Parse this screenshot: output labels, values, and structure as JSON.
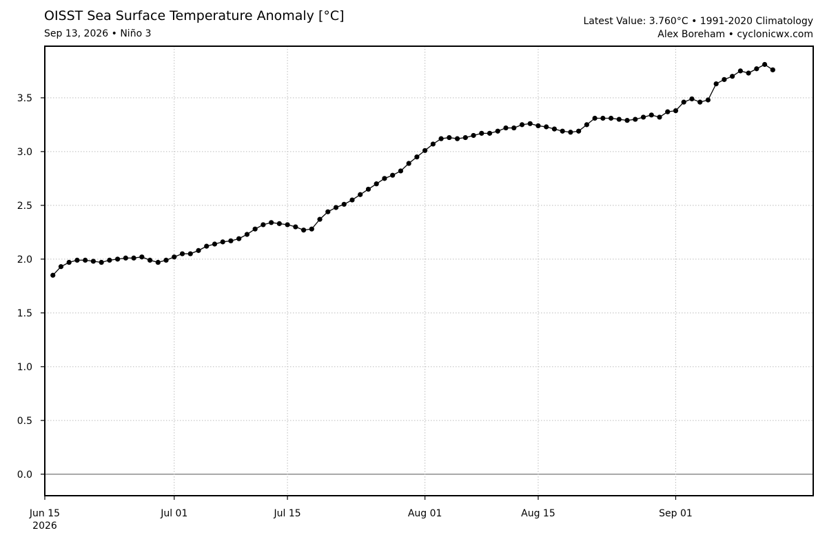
{
  "header": {
    "title": "OISST Sea Surface Temperature Anomaly [°C]",
    "subtitle": "Sep 13, 2026 • Niño 3",
    "latest_value": "Latest Value: 3.760°C • 1991-2020 Climatology",
    "credit": "Alex Boreham • cyclonicwx.com"
  },
  "chart_data": {
    "type": "line",
    "title": "OISST Sea Surface Temperature Anomaly [°C]",
    "subtitle": "Sep 13, 2026 • Niño 3",
    "xlabel": "",
    "ylabel": "",
    "ylim": [
      -0.2,
      3.98
    ],
    "xlim": [
      "2026-06-15",
      "2026-09-18"
    ],
    "yticks": [
      0.0,
      0.5,
      1.0,
      1.5,
      2.0,
      2.5,
      3.0,
      3.5
    ],
    "ytick_labels": [
      "0.0",
      "0.5",
      "1.0",
      "1.5",
      "2.0",
      "2.5",
      "3.0",
      "3.5"
    ],
    "xticks": [
      {
        "date": "2026-06-15",
        "label": "Jun 15",
        "sublabel": "2026"
      },
      {
        "date": "2026-07-01",
        "label": "Jul 01",
        "sublabel": ""
      },
      {
        "date": "2026-07-15",
        "label": "Jul 15",
        "sublabel": ""
      },
      {
        "date": "2026-08-01",
        "label": "Aug 01",
        "sublabel": ""
      },
      {
        "date": "2026-08-15",
        "label": "Aug 15",
        "sublabel": ""
      },
      {
        "date": "2026-09-01",
        "label": "Sep 01",
        "sublabel": ""
      }
    ],
    "grid": true,
    "zero_line": true,
    "line_color": "#000000",
    "marker_color": "#000000",
    "zero_line_color": "#808080",
    "grid_color": "#bbbbbb",
    "series": [
      {
        "x": [
          "2026-06-16",
          "2026-06-17",
          "2026-06-18",
          "2026-06-19",
          "2026-06-20",
          "2026-06-21",
          "2026-06-22",
          "2026-06-23",
          "2026-06-24",
          "2026-06-25",
          "2026-06-26",
          "2026-06-27",
          "2026-06-28",
          "2026-06-29",
          "2026-06-30",
          "2026-07-01",
          "2026-07-02",
          "2026-07-03",
          "2026-07-04",
          "2026-07-05",
          "2026-07-06",
          "2026-07-07",
          "2026-07-08",
          "2026-07-09",
          "2026-07-10",
          "2026-07-11",
          "2026-07-12",
          "2026-07-13",
          "2026-07-14",
          "2026-07-15",
          "2026-07-16",
          "2026-07-17",
          "2026-07-18",
          "2026-07-19",
          "2026-07-20",
          "2026-07-21",
          "2026-07-22",
          "2026-07-23",
          "2026-07-24",
          "2026-07-25",
          "2026-07-26",
          "2026-07-27",
          "2026-07-28",
          "2026-07-29",
          "2026-07-30",
          "2026-07-31",
          "2026-08-01",
          "2026-08-02",
          "2026-08-03",
          "2026-08-04",
          "2026-08-05",
          "2026-08-06",
          "2026-08-07",
          "2026-08-08",
          "2026-08-09",
          "2026-08-10",
          "2026-08-11",
          "2026-08-12",
          "2026-08-13",
          "2026-08-14",
          "2026-08-15",
          "2026-08-16",
          "2026-08-17",
          "2026-08-18",
          "2026-08-19",
          "2026-08-20",
          "2026-08-21",
          "2026-08-22",
          "2026-08-23",
          "2026-08-24",
          "2026-08-25",
          "2026-08-26",
          "2026-08-27",
          "2026-08-28",
          "2026-08-29",
          "2026-08-30",
          "2026-08-31",
          "2026-09-01",
          "2026-09-02",
          "2026-09-03",
          "2026-09-04",
          "2026-09-05",
          "2026-09-06",
          "2026-09-07",
          "2026-09-08",
          "2026-09-09",
          "2026-09-10",
          "2026-09-11",
          "2026-09-12",
          "2026-09-13"
        ],
        "y": [
          1.85,
          1.93,
          1.97,
          1.99,
          1.99,
          1.98,
          1.97,
          1.99,
          2.0,
          2.01,
          2.01,
          2.02,
          1.99,
          1.97,
          1.99,
          2.02,
          2.05,
          2.05,
          2.08,
          2.12,
          2.14,
          2.16,
          2.17,
          2.19,
          2.23,
          2.28,
          2.32,
          2.34,
          2.33,
          2.32,
          2.3,
          2.27,
          2.28,
          2.37,
          2.44,
          2.48,
          2.51,
          2.55,
          2.6,
          2.65,
          2.7,
          2.75,
          2.78,
          2.82,
          2.89,
          2.95,
          3.01,
          3.07,
          3.12,
          3.13,
          3.12,
          3.13,
          3.15,
          3.17,
          3.17,
          3.19,
          3.22,
          3.22,
          3.25,
          3.26,
          3.24,
          3.23,
          3.21,
          3.19,
          3.18,
          3.19,
          3.25,
          3.31,
          3.31,
          3.31,
          3.3,
          3.29,
          3.3,
          3.32,
          3.34,
          3.32,
          3.37,
          3.38,
          3.46,
          3.49,
          3.46,
          3.48,
          3.63,
          3.67,
          3.7,
          3.75,
          3.73,
          3.77,
          3.81,
          3.76
        ]
      }
    ]
  }
}
